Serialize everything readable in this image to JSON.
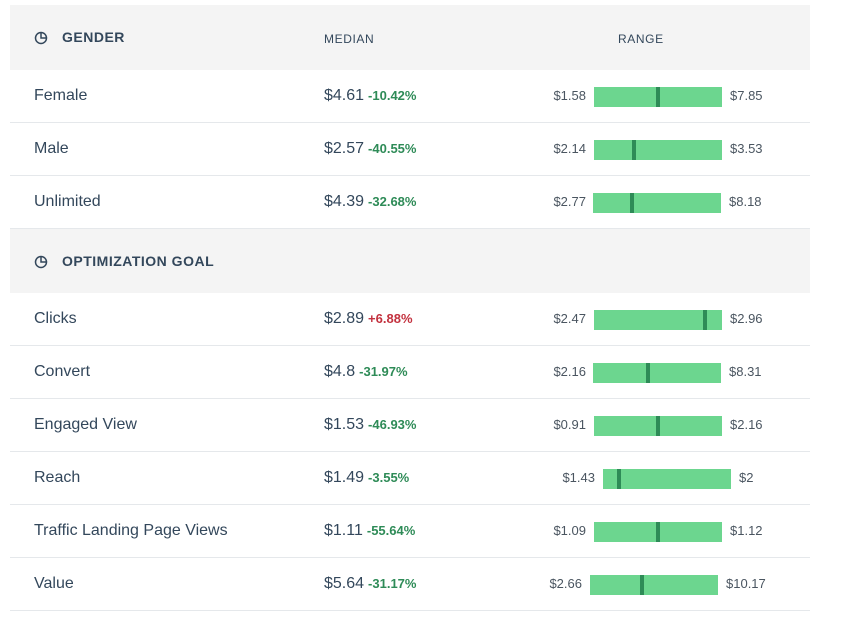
{
  "columns": {
    "median": "MEDIAN",
    "range": "RANGE"
  },
  "sections": [
    {
      "title": "GENDER",
      "rows": [
        {
          "label": "Female",
          "median": "$4.61",
          "change": "-10.42%",
          "trend": "neg",
          "min": "$1.58",
          "max": "$7.85",
          "marker": 0.5
        },
        {
          "label": "Male",
          "median": "$2.57",
          "change": "-40.55%",
          "trend": "neg",
          "min": "$2.14",
          "max": "$3.53",
          "marker": 0.31
        },
        {
          "label": "Unlimited",
          "median": "$4.39",
          "change": "-32.68%",
          "trend": "neg",
          "min": "$2.77",
          "max": "$8.18",
          "marker": 0.3
        }
      ]
    },
    {
      "title": "OPTIMIZATION GOAL",
      "rows": [
        {
          "label": "Clicks",
          "median": "$2.89",
          "change": "+6.88%",
          "trend": "pos",
          "min": "$2.47",
          "max": "$2.96",
          "marker": 0.88
        },
        {
          "label": "Convert",
          "median": "$4.8",
          "change": "-31.97%",
          "trend": "neg",
          "min": "$2.16",
          "max": "$8.31",
          "marker": 0.43
        },
        {
          "label": "Engaged View",
          "median": "$1.53",
          "change": "-46.93%",
          "trend": "neg",
          "min": "$0.91",
          "max": "$2.16",
          "marker": 0.5
        },
        {
          "label": "Reach",
          "median": "$1.49",
          "change": "-3.55%",
          "trend": "neg",
          "min": "$1.43",
          "max": "$2",
          "marker": 0.11
        },
        {
          "label": "Traffic Landing Page Views",
          "median": "$1.11",
          "change": "-55.64%",
          "trend": "neg",
          "min": "$1.09",
          "max": "$1.12",
          "marker": 0.5
        },
        {
          "label": "Value",
          "median": "$5.64",
          "change": "-31.17%",
          "trend": "neg",
          "min": "$2.66",
          "max": "$10.17",
          "marker": 0.4
        }
      ]
    }
  ]
}
